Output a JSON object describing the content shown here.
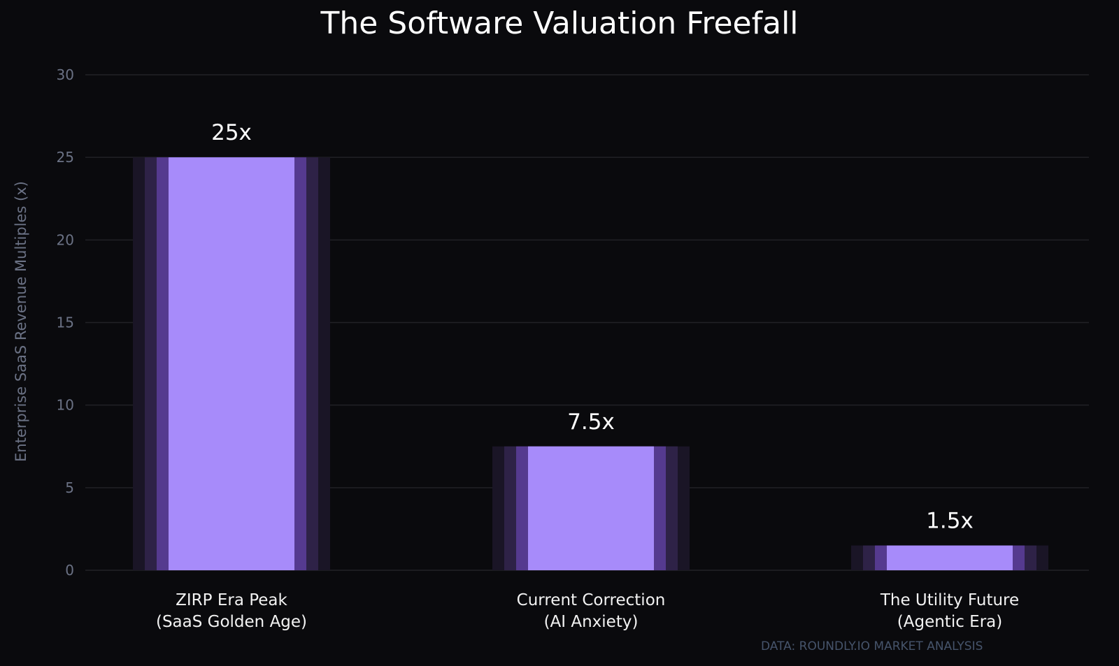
{
  "chart_data": {
    "type": "bar",
    "title": "The Software Valuation Freefall",
    "xlabel": "",
    "ylabel": "Enterprise SaaS Revenue Multiples (x)",
    "categories": [
      [
        "ZIRP Era Peak",
        "(SaaS Golden Age)"
      ],
      [
        "Current Correction",
        "(AI Anxiety)"
      ],
      [
        "The Utility Future",
        "(Agentic Era)"
      ]
    ],
    "values": [
      25,
      7.5,
      1.5
    ],
    "data_labels": [
      "25x",
      "7.5x",
      "1.5x"
    ],
    "ylim": [
      0,
      30
    ],
    "yticks": [
      0,
      5,
      10,
      15,
      20,
      25,
      30
    ],
    "grid": true,
    "colors": {
      "bar": "#a78bfa",
      "glow": [
        "#553a8f",
        "#2e2247",
        "#1a1526"
      ],
      "background": "#0a0a0d",
      "grid": "#222226"
    },
    "source": "DATA: ROUNDLY.IO MARKET ANALYSIS"
  }
}
